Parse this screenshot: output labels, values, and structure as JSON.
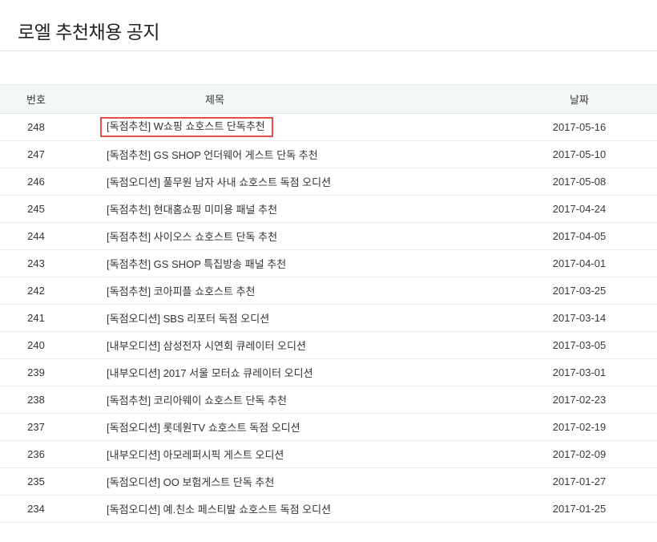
{
  "page": {
    "title": "로엘 추천채용 공지"
  },
  "accent": {
    "highlight_border_color": "#e5504c",
    "header_background": "#f4f7f8"
  },
  "table": {
    "headers": [
      "번호",
      "제목",
      "날짜"
    ],
    "rows": [
      {
        "no": "248",
        "title": "[독점추천] W쇼핑 쇼호스트 단독추천",
        "date": "2017-05-16",
        "highlighted": true
      },
      {
        "no": "247",
        "title": "[독점추천] GS SHOP 언더웨어 게스트 단독 추천",
        "date": "2017-05-10",
        "highlighted": false
      },
      {
        "no": "246",
        "title": "[독점오디션] 풀무원 남자 사내 쇼호스트 독점 오디션",
        "date": "2017-05-08",
        "highlighted": false
      },
      {
        "no": "245",
        "title": "[독점추천] 현대홈쇼핑 미미용 패널 추천",
        "date": "2017-04-24",
        "highlighted": false
      },
      {
        "no": "244",
        "title": "[독점추천] 사이오스 쇼호스트 단독 추천",
        "date": "2017-04-05",
        "highlighted": false
      },
      {
        "no": "243",
        "title": "[독점추천] GS SHOP 특집방송 패널 추천",
        "date": "2017-04-01",
        "highlighted": false
      },
      {
        "no": "242",
        "title": "[독점추천] 코아피플 쇼호스트 추천",
        "date": "2017-03-25",
        "highlighted": false
      },
      {
        "no": "241",
        "title": "[독점오디션] SBS 리포터 독점 오디션",
        "date": "2017-03-14",
        "highlighted": false
      },
      {
        "no": "240",
        "title": "[내부오디션] 삼성전자 시연회 큐레이터 오디션",
        "date": "2017-03-05",
        "highlighted": false
      },
      {
        "no": "239",
        "title": "[내부오디션] 2017 서울 모터쇼 큐레이터 오디션",
        "date": "2017-03-01",
        "highlighted": false
      },
      {
        "no": "238",
        "title": "[독점추천] 코리아웨이 쇼호스트 단독 추천",
        "date": "2017-02-23",
        "highlighted": false
      },
      {
        "no": "237",
        "title": "[독점오디션] 롯데원TV 쇼호스트 독점 오디션",
        "date": "2017-02-19",
        "highlighted": false
      },
      {
        "no": "236",
        "title": "[내부오디션] 아모레퍼시픽 게스트 오디션",
        "date": "2017-02-09",
        "highlighted": false
      },
      {
        "no": "235",
        "title": "[독점오디션] OO 보험게스트 단독 추천",
        "date": "2017-01-27",
        "highlighted": false
      },
      {
        "no": "234",
        "title": "[독점오디션] 예.친소 페스티발 쇼호스트 독점 오디션",
        "date": "2017-01-25",
        "highlighted": false
      }
    ]
  }
}
